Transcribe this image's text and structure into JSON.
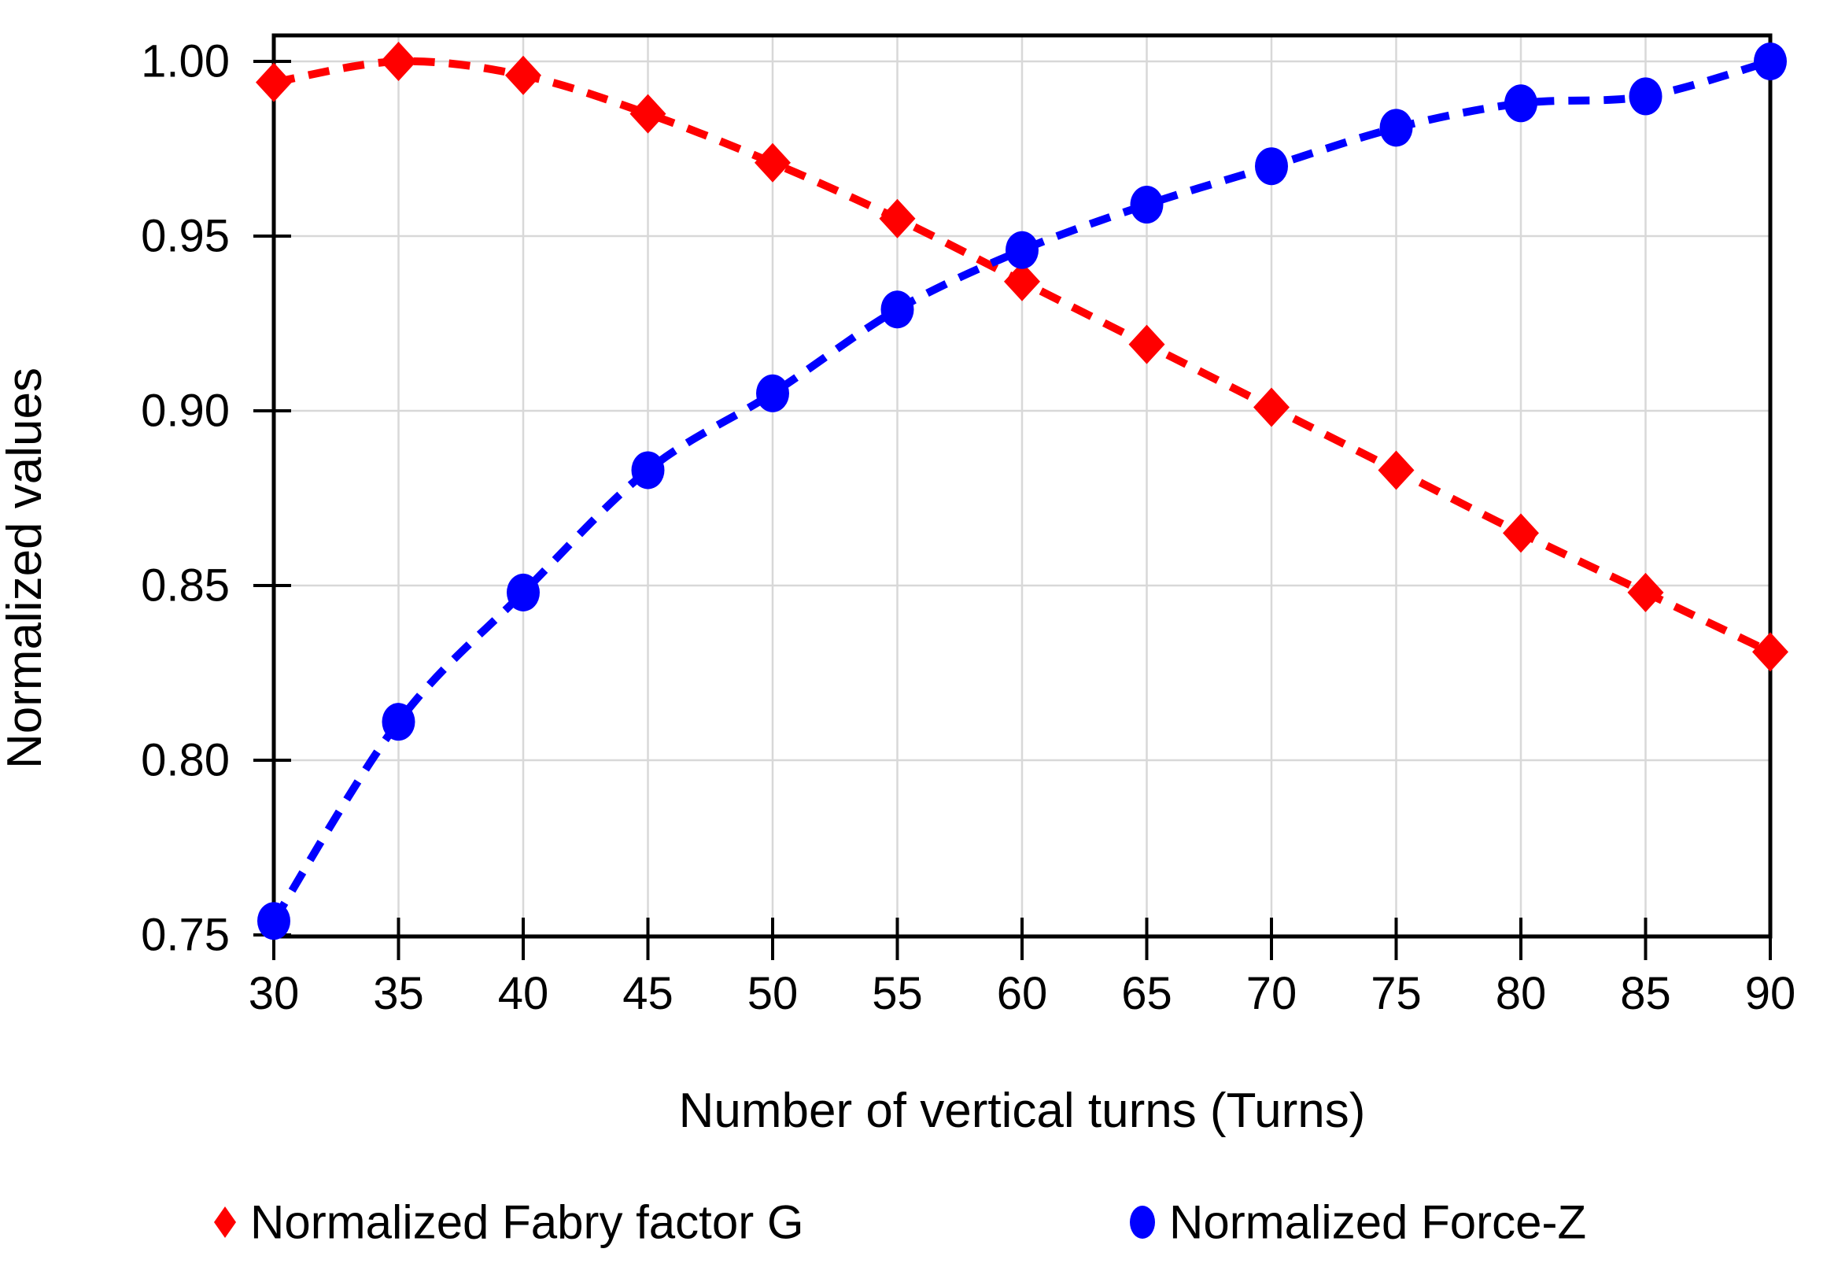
{
  "figure": {
    "background": "#ffffff",
    "axis_color": "#000000",
    "grid_color": "#d8d8d8"
  },
  "chart_data": {
    "type": "line",
    "title": "",
    "xlabel": "Number of vertical turns (Turns)",
    "ylabel": "Normalized values",
    "x": [
      30,
      35,
      40,
      45,
      50,
      55,
      60,
      65,
      70,
      75,
      80,
      85,
      90
    ],
    "x_tick_labels": [
      "30",
      "35",
      "40",
      "45",
      "50",
      "55",
      "60",
      "65",
      "70",
      "75",
      "80",
      "85",
      "90"
    ],
    "y_tick_values": [
      0.75,
      0.8,
      0.85,
      0.9,
      0.95,
      1.0
    ],
    "y_tick_labels": [
      "0.75",
      "0.80",
      "0.85",
      "0.90",
      "0.95",
      "1.00"
    ],
    "xlim": [
      30,
      90
    ],
    "ylim": [
      0.75,
      1.0074
    ],
    "grid": true,
    "legend_position": "bottom",
    "series": [
      {
        "name": "Normalized Fabry factor G",
        "color": "#ff0000",
        "marker": "diamond",
        "line_style": "dashed",
        "values": [
          0.994,
          1.0,
          0.996,
          0.985,
          0.971,
          0.955,
          0.937,
          0.919,
          0.901,
          0.883,
          0.865,
          0.848,
          0.831
        ]
      },
      {
        "name": "Normalized Force-Z",
        "color": "#0000ff",
        "marker": "circle",
        "line_style": "dashed",
        "values": [
          0.754,
          0.811,
          0.848,
          0.883,
          0.905,
          0.929,
          0.946,
          0.959,
          0.97,
          0.981,
          0.988,
          0.99,
          1.0
        ]
      }
    ]
  }
}
